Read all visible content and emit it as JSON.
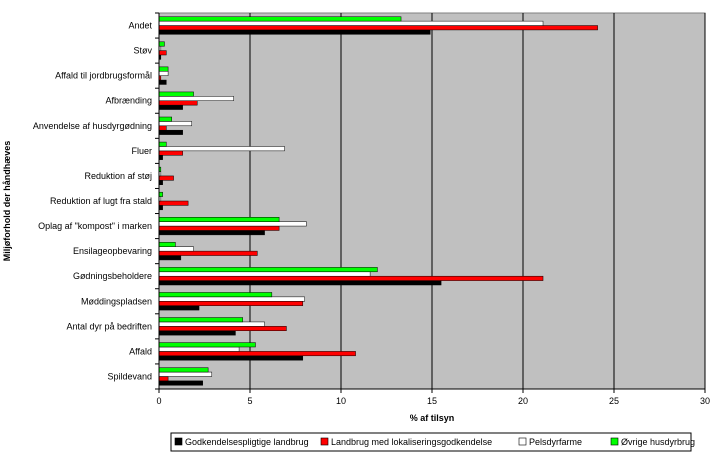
{
  "chart_data": {
    "type": "bar",
    "orientation": "horizontal",
    "xlabel": "% af tilsyn",
    "ylabel": "Miljøforhold der håndhæves",
    "xlim": [
      0,
      30
    ],
    "xticks": [
      0,
      5,
      10,
      15,
      20,
      25,
      30
    ],
    "grid": "vertical",
    "plot_background": "#c0c0c0",
    "legend_position": "bottom",
    "categories": [
      "Andet",
      "Støv",
      "Affald til jordbrugsformål",
      "Afbrænding",
      "Anvendelse af husdyrgødning",
      "Fluer",
      "Reduktion af støj",
      "Reduktion af lugt fra stald",
      "Oplag af \"kompost\" i marken",
      "Ensilageopbevaring",
      "Gødningsbeholdere",
      "Møddingspladsen",
      "Antal dyr på bedriften",
      "Affald",
      "Spildevand"
    ],
    "series": [
      {
        "name": "Godkendelsespligtige landbrug",
        "color": "#000000",
        "values": [
          14.9,
          0.1,
          0.4,
          1.3,
          1.3,
          0.2,
          0.2,
          0.2,
          5.8,
          1.2,
          15.5,
          2.2,
          4.2,
          7.9,
          2.4
        ]
      },
      {
        "name": "Landbrug med lokaliseringsgodkendelse",
        "color": "#ff0000",
        "values": [
          24.1,
          0.4,
          0.1,
          2.1,
          0.4,
          1.3,
          0.8,
          1.6,
          6.6,
          5.4,
          21.1,
          7.9,
          7.0,
          10.8,
          0.5
        ]
      },
      {
        "name": "Pelsdyrfarme",
        "color": "#ffffff",
        "values": [
          21.1,
          0.1,
          0.5,
          4.1,
          1.8,
          6.9,
          0.1,
          0.1,
          8.1,
          1.9,
          11.6,
          8.0,
          5.8,
          4.4,
          2.9
        ]
      },
      {
        "name": "Øvrige husdyrbrug",
        "color": "#00ff00",
        "values": [
          13.3,
          0.3,
          0.5,
          1.9,
          0.7,
          0.4,
          0.1,
          0.2,
          6.6,
          0.9,
          12.0,
          6.2,
          4.6,
          5.3,
          2.7
        ]
      }
    ]
  }
}
